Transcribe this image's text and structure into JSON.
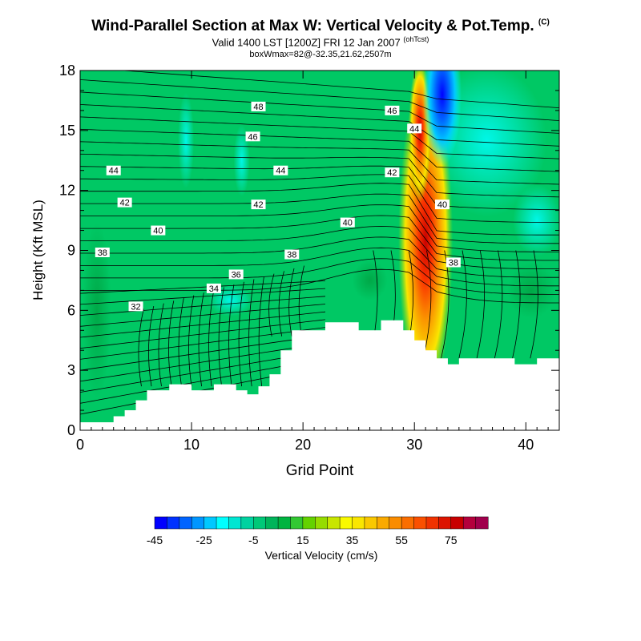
{
  "header": {
    "title": "Wind-Parallel Section at Max W: Vertical Velocity & Pot.Temp.",
    "title_mark": "(C)",
    "valid": "Valid 1400 LST [1200Z] FRI 12 Jan 2007",
    "valid_tag": "(ohTcst)",
    "box": "boxWmax=82@-32.35,21.62,2507m"
  },
  "chart_data": {
    "type": "heatmap",
    "title": "Wind-Parallel Section at Max W: Vertical Velocity & Pot.Temp.",
    "xlabel": "Grid Point",
    "ylabel": "Height (Kft MSL)",
    "xlim": [
      0,
      43
    ],
    "ylim": [
      0,
      18
    ],
    "x_ticks": [
      0,
      10,
      20,
      30,
      40
    ],
    "y_ticks": [
      0,
      3,
      6,
      9,
      12,
      15,
      18
    ],
    "terrain_top": [
      [
        0,
        0.4
      ],
      [
        3,
        0.7
      ],
      [
        4,
        1.0
      ],
      [
        5,
        1.5
      ],
      [
        6,
        2.0
      ],
      [
        8,
        2.3
      ],
      [
        10,
        2.0
      ],
      [
        12,
        2.3
      ],
      [
        14,
        2.0
      ],
      [
        15,
        1.8
      ],
      [
        16,
        2.2
      ],
      [
        17,
        2.8
      ],
      [
        18,
        4.0
      ],
      [
        19,
        5.0
      ],
      [
        22,
        5.4
      ],
      [
        25,
        5.0
      ],
      [
        27,
        5.5
      ],
      [
        29,
        5.0
      ],
      [
        30,
        4.5
      ],
      [
        31,
        4.0
      ],
      [
        32,
        3.6
      ],
      [
        33,
        3.3
      ],
      [
        34,
        3.6
      ],
      [
        37,
        3.6
      ],
      [
        39,
        3.3
      ],
      [
        41,
        3.6
      ],
      [
        43,
        3.6
      ]
    ],
    "w_field_features": [
      {
        "kind": "updraft max",
        "x": 31,
        "y": 9.5,
        "w": 82
      },
      {
        "kind": "downdraft min",
        "x": 32.5,
        "y": 16.5,
        "w": -45
      }
    ],
    "theta_labels": [
      {
        "text": "48",
        "x": 16,
        "y": 16.2
      },
      {
        "text": "46",
        "x": 15.5,
        "y": 14.7
      },
      {
        "text": "46",
        "x": 28,
        "y": 16.0
      },
      {
        "text": "44",
        "x": 3,
        "y": 13.0
      },
      {
        "text": "44",
        "x": 18,
        "y": 13.0
      },
      {
        "text": "44",
        "x": 30,
        "y": 15.1
      },
      {
        "text": "42",
        "x": 4,
        "y": 11.4
      },
      {
        "text": "42",
        "x": 16,
        "y": 11.3
      },
      {
        "text": "42",
        "x": 28,
        "y": 12.9
      },
      {
        "text": "40",
        "x": 7,
        "y": 10.0
      },
      {
        "text": "40",
        "x": 24,
        "y": 10.4
      },
      {
        "text": "40",
        "x": 32.5,
        "y": 11.3
      },
      {
        "text": "38",
        "x": 2,
        "y": 8.9
      },
      {
        "text": "38",
        "x": 19,
        "y": 8.8
      },
      {
        "text": "38",
        "x": 33.5,
        "y": 8.4
      },
      {
        "text": "36",
        "x": 14,
        "y": 7.8
      },
      {
        "text": "34",
        "x": 12,
        "y": 7.1
      },
      {
        "text": "32",
        "x": 5,
        "y": 6.2
      }
    ],
    "colorbar": {
      "label": "Vertical Velocity (cm/s)",
      "min": -45,
      "step": 5,
      "colors": [
        "#0000ff",
        "#0032ff",
        "#0064ff",
        "#0096ff",
        "#00c8ff",
        "#00ffff",
        "#00e6d2",
        "#00d2a0",
        "#00c878",
        "#00b45a",
        "#00b440",
        "#32c832",
        "#64d200",
        "#96dc00",
        "#c8e600",
        "#fafa00",
        "#fae600",
        "#fac800",
        "#faaa00",
        "#fa8c00",
        "#fa6e00",
        "#fa5000",
        "#f03200",
        "#dc1400",
        "#c80000",
        "#b4003c",
        "#a0004c"
      ],
      "tick_labels": [
        "-45",
        "-25",
        "-5",
        "15",
        "35",
        "55",
        "75"
      ]
    }
  }
}
